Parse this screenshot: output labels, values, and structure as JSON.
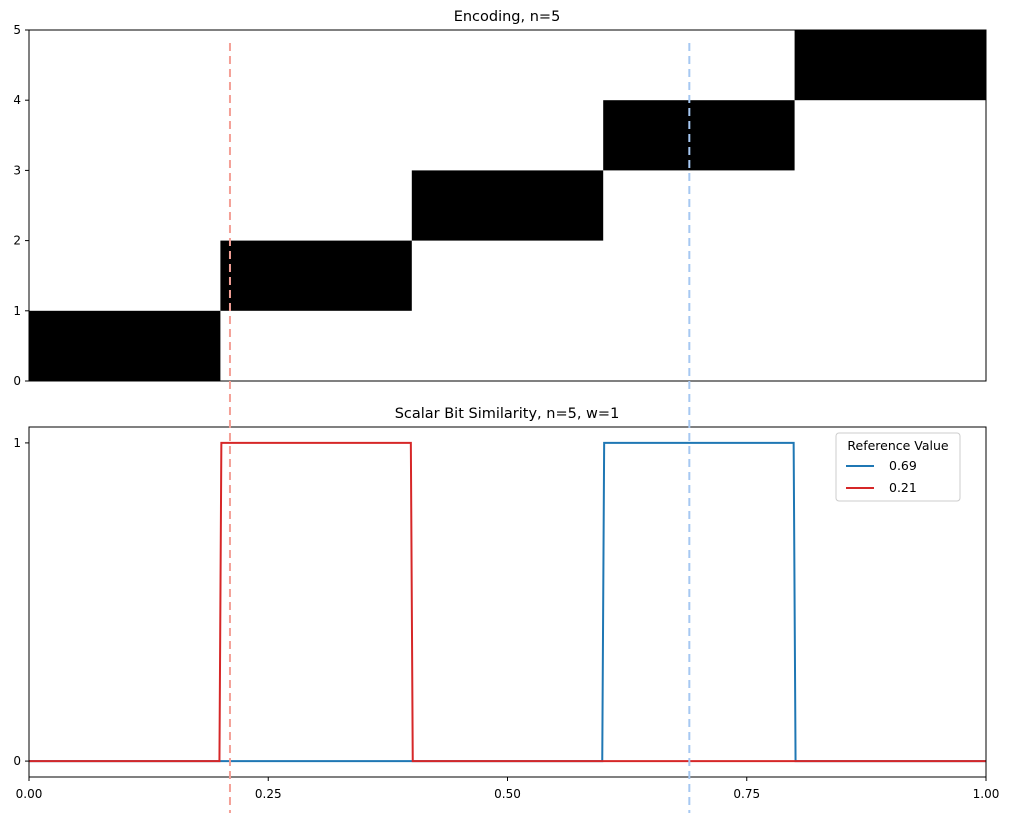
{
  "chart_data": [
    {
      "type": "heatmap",
      "title": "Encoding, n=5",
      "xlim": [
        0,
        1
      ],
      "ylim": [
        0,
        5
      ],
      "y_ticks": [
        "0",
        "1",
        "2",
        "3",
        "4",
        "5"
      ],
      "x_ticks_shown": false,
      "cell_color": "#000000",
      "cells": [
        {
          "x0": 0.0,
          "x1": 0.2,
          "bit": 0
        },
        {
          "x0": 0.2,
          "x1": 0.4,
          "bit": 1
        },
        {
          "x0": 0.4,
          "x1": 0.6,
          "bit": 2
        },
        {
          "x0": 0.6,
          "x1": 0.8,
          "bit": 3
        },
        {
          "x0": 0.8,
          "x1": 1.0,
          "bit": 4
        }
      ]
    },
    {
      "type": "line",
      "title": "Scalar Bit Similarity, n=5, w=1",
      "xlim": [
        0,
        1
      ],
      "ylim": [
        -0.05,
        1.05
      ],
      "x_ticks": [
        "0.00",
        "0.25",
        "0.50",
        "0.75",
        "1.00"
      ],
      "x_tick_values": [
        0,
        0.25,
        0.5,
        0.75,
        1.0
      ],
      "y_ticks": [
        "0",
        "1"
      ],
      "y_tick_values": [
        0,
        1
      ],
      "legend": {
        "title": "Reference Value",
        "placement": "upper right"
      },
      "series": [
        {
          "name": "0.69",
          "color": "#1f77b4",
          "x": [
            0.0,
            0.599,
            0.601,
            0.799,
            0.801,
            1.0
          ],
          "y": [
            0,
            0,
            1,
            1,
            0,
            0
          ]
        },
        {
          "name": "0.21",
          "color": "#d62728",
          "x": [
            0.0,
            0.199,
            0.201,
            0.399,
            0.401,
            1.0
          ],
          "y": [
            0,
            0,
            1,
            1,
            0,
            0
          ]
        }
      ]
    }
  ],
  "reference_lines": [
    {
      "value": 0.21,
      "color": "#f4a096"
    },
    {
      "value": 0.69,
      "color": "#a6c8f2"
    }
  ]
}
